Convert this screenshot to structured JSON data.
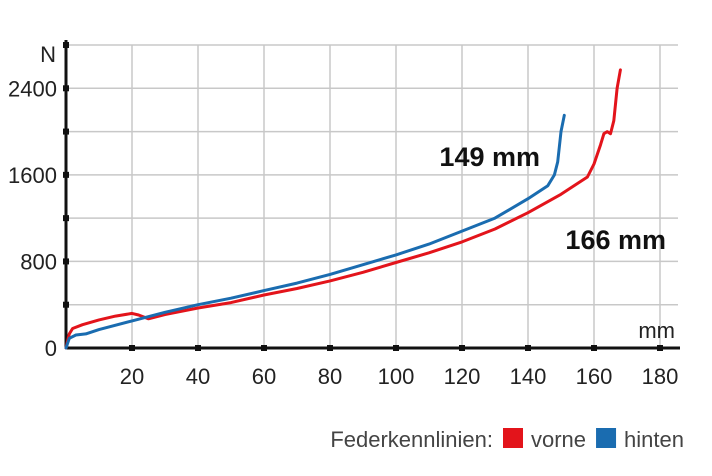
{
  "chart_data": {
    "type": "line",
    "xlabel": "mm",
    "ylabel": "N",
    "xlim": [
      0,
      180
    ],
    "ylim": [
      0,
      2800
    ],
    "x_ticks": [
      20,
      40,
      60,
      80,
      100,
      120,
      140,
      160,
      180
    ],
    "y_ticks": [
      0,
      800,
      1600,
      2400
    ],
    "y_minor_ticks": [
      400,
      1200,
      2000,
      2800
    ],
    "grid": true,
    "legend": {
      "title": "Federkennlinien:",
      "placement": "bottom-right",
      "entries": [
        {
          "label": "vorne",
          "color": "#e3141b"
        },
        {
          "label": "hinten",
          "color": "#1a6cb0"
        }
      ]
    },
    "series": [
      {
        "name": "vorne",
        "color": "#e3141b",
        "points": [
          [
            0,
            0
          ],
          [
            1,
            130
          ],
          [
            2,
            180
          ],
          [
            5,
            215
          ],
          [
            10,
            260
          ],
          [
            15,
            295
          ],
          [
            20,
            320
          ],
          [
            22,
            305
          ],
          [
            25,
            270
          ],
          [
            30,
            310
          ],
          [
            40,
            370
          ],
          [
            50,
            420
          ],
          [
            60,
            490
          ],
          [
            70,
            550
          ],
          [
            80,
            620
          ],
          [
            90,
            700
          ],
          [
            100,
            790
          ],
          [
            110,
            880
          ],
          [
            120,
            980
          ],
          [
            130,
            1100
          ],
          [
            140,
            1250
          ],
          [
            150,
            1420
          ],
          [
            158,
            1580
          ],
          [
            160,
            1700
          ],
          [
            162,
            1880
          ],
          [
            163,
            1980
          ],
          [
            164,
            2000
          ],
          [
            165,
            1980
          ],
          [
            166,
            2100
          ],
          [
            167,
            2400
          ],
          [
            168,
            2570
          ]
        ]
      },
      {
        "name": "hinten",
        "color": "#1a6cb0",
        "points": [
          [
            0,
            0
          ],
          [
            1,
            90
          ],
          [
            3,
            120
          ],
          [
            6,
            130
          ],
          [
            10,
            170
          ],
          [
            20,
            250
          ],
          [
            30,
            330
          ],
          [
            40,
            400
          ],
          [
            50,
            460
          ],
          [
            60,
            530
          ],
          [
            70,
            600
          ],
          [
            80,
            680
          ],
          [
            90,
            770
          ],
          [
            100,
            860
          ],
          [
            110,
            960
          ],
          [
            120,
            1080
          ],
          [
            130,
            1200
          ],
          [
            140,
            1380
          ],
          [
            146,
            1500
          ],
          [
            148,
            1600
          ],
          [
            149,
            1720
          ],
          [
            150,
            2000
          ],
          [
            151,
            2150
          ]
        ]
      }
    ],
    "annotations": [
      {
        "text": "149 mm",
        "series": "hinten",
        "near_x": 149
      },
      {
        "text": "166 mm",
        "series": "vorne",
        "near_x": 166
      }
    ]
  }
}
